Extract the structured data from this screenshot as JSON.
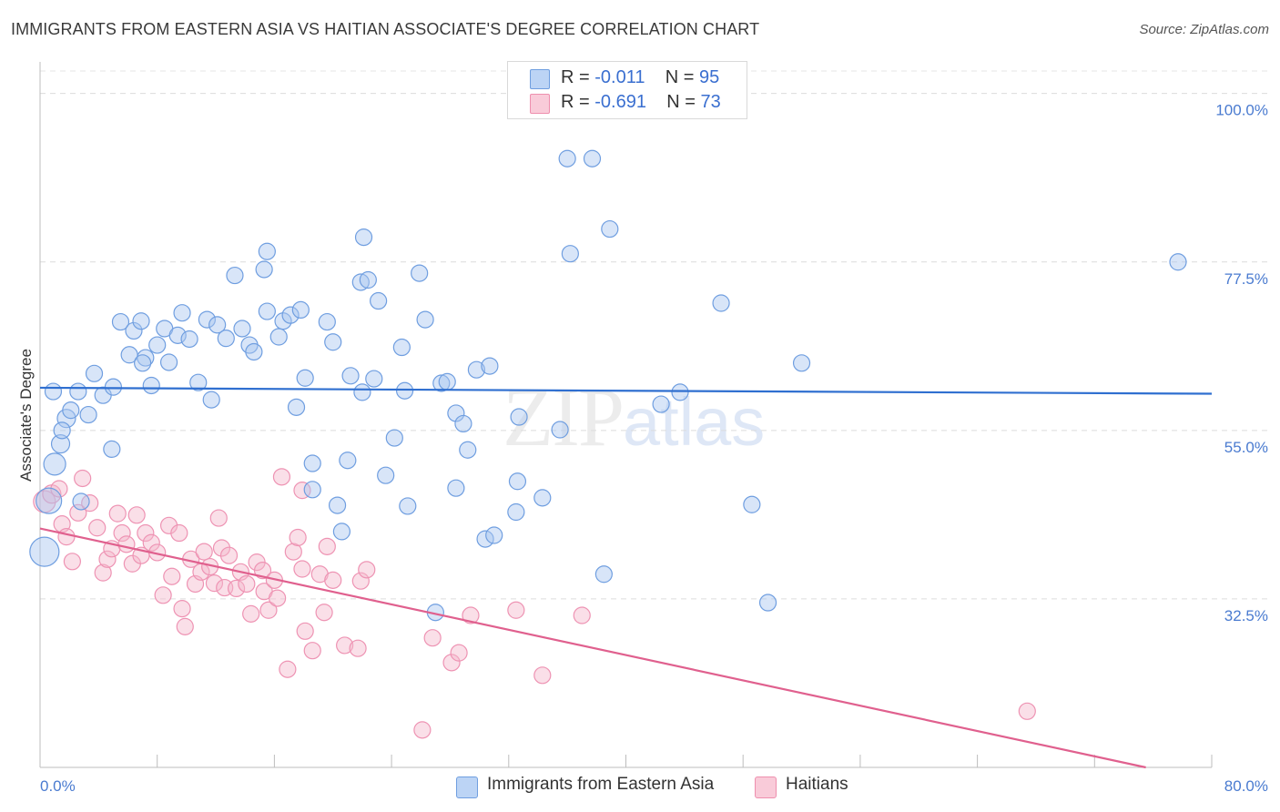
{
  "header": {
    "title": "IMMIGRANTS FROM EASTERN ASIA VS HAITIAN ASSOCIATE'S DEGREE CORRELATION CHART",
    "source": "Source: ZipAtlas.com"
  },
  "watermark": {
    "zip": "ZIP",
    "atlas": "atlas"
  },
  "legend": {
    "rows": [
      {
        "r_label": "R =",
        "r_value": "-0.011",
        "n_label": "N =",
        "n_value": "95",
        "color": "#a8c6f0"
      },
      {
        "r_label": "R =",
        "r_value": "-0.691",
        "n_label": "N =",
        "n_value": "73",
        "color": "#f5b8cc"
      }
    ]
  },
  "bottom_legend": {
    "series1": "Immigrants from Eastern Asia",
    "series2": "Haitians"
  },
  "chart_data": {
    "type": "scatter",
    "title": "IMMIGRANTS FROM EASTERN ASIA VS HAITIAN ASSOCIATE'S DEGREE CORRELATION CHART",
    "xlabel": "",
    "ylabel": "Associate's Degree",
    "xlim": [
      0,
      80
    ],
    "ylim": [
      10,
      103
    ],
    "x_tick_labels": [
      "0.0%",
      "80.0%"
    ],
    "y_ticks": [
      32.5,
      55.0,
      77.5,
      100.0
    ],
    "y_tick_labels": [
      "32.5%",
      "55.0%",
      "77.5%",
      "100.0%"
    ],
    "grid": "horizontal dashed",
    "colors": {
      "series1": "#a8c6f0",
      "series1_line": "#2f6fd0",
      "series2": "#f5b8cc",
      "series2_line": "#e0608e"
    },
    "series": [
      {
        "name": "Immigrants from Eastern Asia",
        "trend": {
          "x": [
            0,
            80
          ],
          "y": [
            60.7,
            59.9
          ]
        },
        "points": [
          [
            0.3,
            38.8,
            16
          ],
          [
            0.6,
            45.6,
            14
          ],
          [
            1.0,
            50.5,
            12
          ],
          [
            1.4,
            53.2,
            10
          ],
          [
            1.8,
            56.6,
            10
          ],
          [
            2.1,
            57.7,
            9
          ],
          [
            2.6,
            60.2,
            9
          ],
          [
            3.3,
            57.1,
            9
          ],
          [
            3.7,
            62.6,
            9
          ],
          [
            4.3,
            59.7,
            9
          ],
          [
            5.0,
            60.8,
            9
          ],
          [
            5.5,
            69.5,
            9
          ],
          [
            6.1,
            65.1,
            9
          ],
          [
            6.4,
            68.3,
            9
          ],
          [
            6.9,
            69.6,
            9
          ],
          [
            7.2,
            64.7,
            9
          ],
          [
            7.6,
            61.0,
            9
          ],
          [
            8.0,
            66.4,
            9
          ],
          [
            8.5,
            68.6,
            9
          ],
          [
            8.8,
            64.1,
            9
          ],
          [
            9.4,
            67.7,
            9
          ],
          [
            9.7,
            70.7,
            9
          ],
          [
            10.2,
            67.2,
            9
          ],
          [
            10.8,
            61.4,
            9
          ],
          [
            11.4,
            69.8,
            9
          ],
          [
            11.7,
            59.1,
            9
          ],
          [
            12.1,
            69.1,
            9
          ],
          [
            12.7,
            67.3,
            9
          ],
          [
            13.3,
            75.7,
            9
          ],
          [
            13.8,
            68.6,
            9
          ],
          [
            14.3,
            66.4,
            9
          ],
          [
            14.6,
            65.5,
            9
          ],
          [
            15.3,
            76.5,
            9
          ],
          [
            15.5,
            78.9,
            9
          ],
          [
            15.5,
            70.9,
            9
          ],
          [
            16.3,
            67.5,
            9
          ],
          [
            16.6,
            69.6,
            9
          ],
          [
            17.1,
            70.4,
            9
          ],
          [
            17.8,
            71.1,
            9
          ],
          [
            18.1,
            62.0,
            9
          ],
          [
            17.5,
            58.1,
            9
          ],
          [
            18.6,
            50.6,
            9
          ],
          [
            18.6,
            47.1,
            9
          ],
          [
            19.6,
            69.5,
            9
          ],
          [
            20.0,
            66.8,
            9
          ],
          [
            20.3,
            45.0,
            9
          ],
          [
            20.6,
            41.5,
            9
          ],
          [
            21.0,
            51.0,
            9
          ],
          [
            21.2,
            62.3,
            9
          ],
          [
            21.9,
            74.8,
            9
          ],
          [
            22.0,
            60.1,
            9
          ],
          [
            22.1,
            80.8,
            9
          ],
          [
            22.4,
            75.1,
            9
          ],
          [
            22.8,
            61.9,
            9
          ],
          [
            23.1,
            72.3,
            9
          ],
          [
            23.6,
            49.0,
            9
          ],
          [
            24.2,
            54.0,
            9
          ],
          [
            24.7,
            66.1,
            9
          ],
          [
            24.9,
            60.3,
            9
          ],
          [
            25.1,
            44.9,
            9
          ],
          [
            25.9,
            76.0,
            9
          ],
          [
            26.3,
            69.8,
            9
          ],
          [
            27.0,
            30.7,
            9
          ],
          [
            27.4,
            61.3,
            9
          ],
          [
            27.8,
            61.5,
            9
          ],
          [
            28.4,
            47.3,
            9
          ],
          [
            28.4,
            57.3,
            9
          ],
          [
            28.9,
            55.9,
            9
          ],
          [
            29.2,
            52.4,
            9
          ],
          [
            29.8,
            63.1,
            9
          ],
          [
            30.4,
            40.5,
            9
          ],
          [
            30.7,
            63.6,
            9
          ],
          [
            31.0,
            41.0,
            9
          ],
          [
            32.5,
            44.1,
            9
          ],
          [
            32.7,
            56.8,
            9
          ],
          [
            32.6,
            48.2,
            9
          ],
          [
            34.3,
            46.0,
            9
          ],
          [
            35.5,
            55.1,
            9
          ],
          [
            36.0,
            91.3,
            9
          ],
          [
            36.2,
            78.6,
            9
          ],
          [
            37.7,
            91.3,
            9
          ],
          [
            38.5,
            35.8,
            9
          ],
          [
            38.9,
            81.9,
            9
          ],
          [
            42.4,
            58.5,
            9
          ],
          [
            43.7,
            60.1,
            9
          ],
          [
            46.5,
            72.0,
            9
          ],
          [
            48.6,
            45.1,
            9
          ],
          [
            49.7,
            32.0,
            9
          ],
          [
            52.0,
            64.0,
            9
          ],
          [
            77.7,
            77.5,
            9
          ],
          [
            0.9,
            60.2,
            9
          ],
          [
            1.5,
            55.0,
            9
          ],
          [
            2.8,
            45.5,
            9
          ],
          [
            4.9,
            52.5,
            9
          ],
          [
            7.0,
            64.0,
            9
          ]
        ]
      },
      {
        "name": "Haitians",
        "trend": {
          "x": [
            0,
            75.5
          ],
          "y": [
            41.9,
            10.0
          ]
        },
        "points": [
          [
            0.3,
            45.5,
            12
          ],
          [
            0.8,
            46.5,
            10
          ],
          [
            1.3,
            47.2,
            9
          ],
          [
            1.5,
            42.5,
            9
          ],
          [
            1.8,
            40.8,
            9
          ],
          [
            2.2,
            37.5,
            9
          ],
          [
            2.6,
            44.0,
            9
          ],
          [
            2.9,
            48.6,
            9
          ],
          [
            3.4,
            45.3,
            9
          ],
          [
            3.9,
            42.0,
            9
          ],
          [
            4.3,
            36.0,
            9
          ],
          [
            4.6,
            37.8,
            9
          ],
          [
            4.9,
            39.2,
            9
          ],
          [
            5.3,
            43.9,
            9
          ],
          [
            5.6,
            41.3,
            9
          ],
          [
            5.9,
            39.8,
            9
          ],
          [
            6.3,
            37.2,
            9
          ],
          [
            6.6,
            43.7,
            9
          ],
          [
            6.9,
            38.3,
            9
          ],
          [
            7.2,
            41.3,
            9
          ],
          [
            7.6,
            40.0,
            9
          ],
          [
            8.0,
            38.7,
            9
          ],
          [
            8.4,
            33.0,
            9
          ],
          [
            8.8,
            42.3,
            9
          ],
          [
            9.0,
            35.5,
            9
          ],
          [
            9.5,
            41.3,
            9
          ],
          [
            9.7,
            31.2,
            9
          ],
          [
            9.9,
            28.8,
            9
          ],
          [
            10.3,
            37.8,
            9
          ],
          [
            10.6,
            34.5,
            9
          ],
          [
            11.0,
            36.1,
            9
          ],
          [
            11.2,
            38.8,
            9
          ],
          [
            11.6,
            36.8,
            9
          ],
          [
            11.9,
            34.6,
            9
          ],
          [
            12.2,
            43.3,
            9
          ],
          [
            12.4,
            39.3,
            9
          ],
          [
            12.6,
            34.0,
            9
          ],
          [
            12.9,
            38.3,
            9
          ],
          [
            13.4,
            33.9,
            9
          ],
          [
            13.7,
            36.1,
            9
          ],
          [
            14.1,
            34.5,
            9
          ],
          [
            14.4,
            30.5,
            9
          ],
          [
            14.8,
            37.4,
            9
          ],
          [
            15.2,
            36.3,
            9
          ],
          [
            15.3,
            33.5,
            9
          ],
          [
            15.6,
            31.0,
            9
          ],
          [
            16.0,
            35.0,
            9
          ],
          [
            16.2,
            32.6,
            9
          ],
          [
            16.5,
            48.8,
            9
          ],
          [
            16.9,
            23.1,
            9
          ],
          [
            17.3,
            38.8,
            9
          ],
          [
            17.6,
            40.7,
            9
          ],
          [
            17.9,
            36.5,
            9
          ],
          [
            17.9,
            47.0,
            9
          ],
          [
            18.1,
            28.2,
            9
          ],
          [
            18.6,
            25.6,
            9
          ],
          [
            19.1,
            35.8,
            9
          ],
          [
            19.4,
            30.7,
            9
          ],
          [
            19.6,
            39.5,
            9
          ],
          [
            20.0,
            35.0,
            9
          ],
          [
            20.8,
            26.3,
            9
          ],
          [
            21.7,
            25.9,
            9
          ],
          [
            21.9,
            34.9,
            9
          ],
          [
            22.3,
            36.4,
            9
          ],
          [
            26.1,
            15.0,
            9
          ],
          [
            26.8,
            27.3,
            9
          ],
          [
            28.1,
            24.0,
            9
          ],
          [
            28.6,
            25.3,
            9
          ],
          [
            29.4,
            30.3,
            9
          ],
          [
            32.5,
            31.0,
            9
          ],
          [
            34.3,
            22.3,
            9
          ],
          [
            37.0,
            30.3,
            9
          ],
          [
            67.4,
            17.5,
            9
          ]
        ]
      }
    ]
  }
}
